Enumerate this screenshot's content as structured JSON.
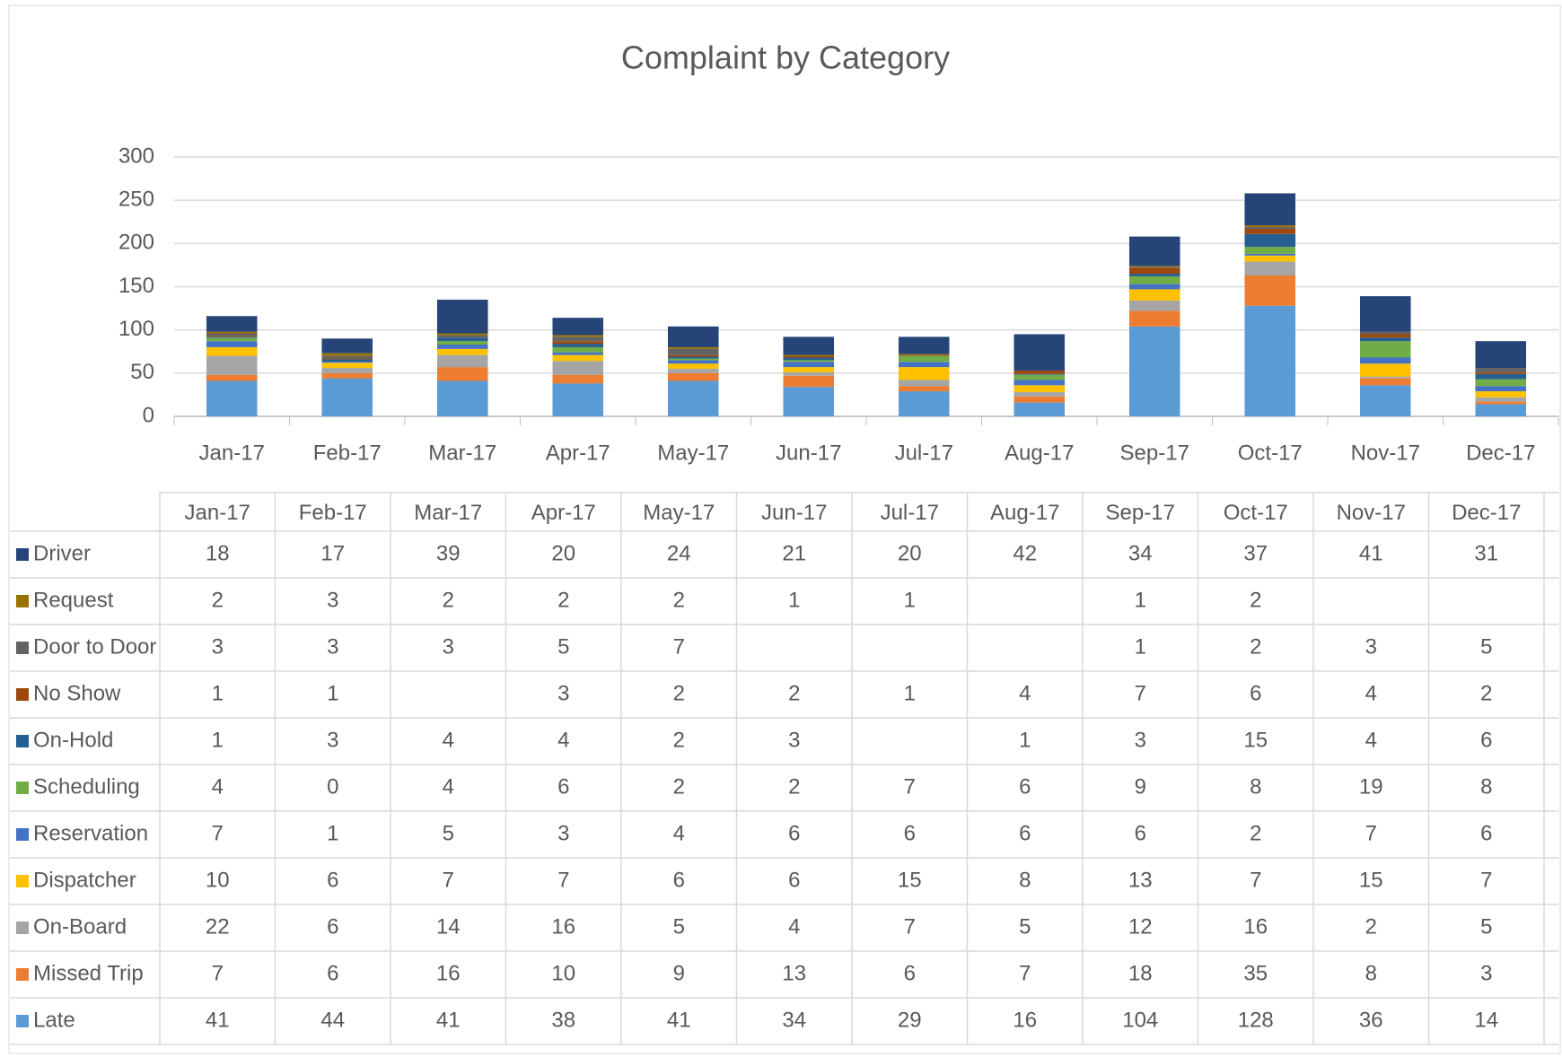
{
  "chart_data": {
    "type": "stacked_bar",
    "title": "Complaint by Category",
    "categories": [
      "Jan-17",
      "Feb-17",
      "Mar-17",
      "Apr-17",
      "May-17",
      "Jun-17",
      "Jul-17",
      "Aug-17",
      "Sep-17",
      "Oct-17",
      "Nov-17",
      "Dec-17"
    ],
    "ylim": [
      0,
      300
    ],
    "yticks": [
      0,
      50,
      100,
      150,
      200,
      250,
      300
    ],
    "grid": true,
    "series": [
      {
        "name": "Driver",
        "color": "#264478",
        "values": [
          18,
          17,
          39,
          20,
          24,
          21,
          20,
          42,
          34,
          37,
          41,
          31
        ]
      },
      {
        "name": "Request",
        "color": "#997300",
        "values": [
          2,
          3,
          2,
          2,
          2,
          1,
          1,
          null,
          1,
          2,
          null,
          null
        ]
      },
      {
        "name": "Door to Door",
        "color": "#636363",
        "values": [
          3,
          3,
          3,
          5,
          7,
          null,
          null,
          null,
          1,
          2,
          3,
          5
        ]
      },
      {
        "name": "No Show",
        "color": "#9e480e",
        "values": [
          1,
          1,
          null,
          3,
          2,
          2,
          1,
          4,
          7,
          6,
          4,
          2
        ]
      },
      {
        "name": "On-Hold",
        "color": "#255e91",
        "values": [
          1,
          3,
          4,
          4,
          2,
          3,
          null,
          1,
          3,
          15,
          4,
          6
        ]
      },
      {
        "name": "Scheduling",
        "color": "#70ad47",
        "values": [
          4,
          0,
          4,
          6,
          2,
          2,
          7,
          6,
          9,
          8,
          19,
          8
        ]
      },
      {
        "name": "Reservation",
        "color": "#4472c4",
        "values": [
          7,
          1,
          5,
          3,
          4,
          6,
          6,
          6,
          6,
          2,
          7,
          6
        ]
      },
      {
        "name": "Dispatcher",
        "color": "#ffc000",
        "values": [
          10,
          6,
          7,
          7,
          6,
          6,
          15,
          8,
          13,
          7,
          15,
          7
        ]
      },
      {
        "name": "On-Board",
        "color": "#a5a5a5",
        "values": [
          22,
          6,
          14,
          16,
          5,
          4,
          7,
          5,
          12,
          16,
          2,
          5
        ]
      },
      {
        "name": "Missed Trip",
        "color": "#ed7d31",
        "values": [
          7,
          6,
          16,
          10,
          9,
          13,
          6,
          7,
          18,
          35,
          8,
          3
        ]
      },
      {
        "name": "Late",
        "color": "#5b9bd5",
        "values": [
          41,
          44,
          41,
          38,
          41,
          34,
          29,
          16,
          104,
          128,
          36,
          14
        ]
      }
    ]
  }
}
